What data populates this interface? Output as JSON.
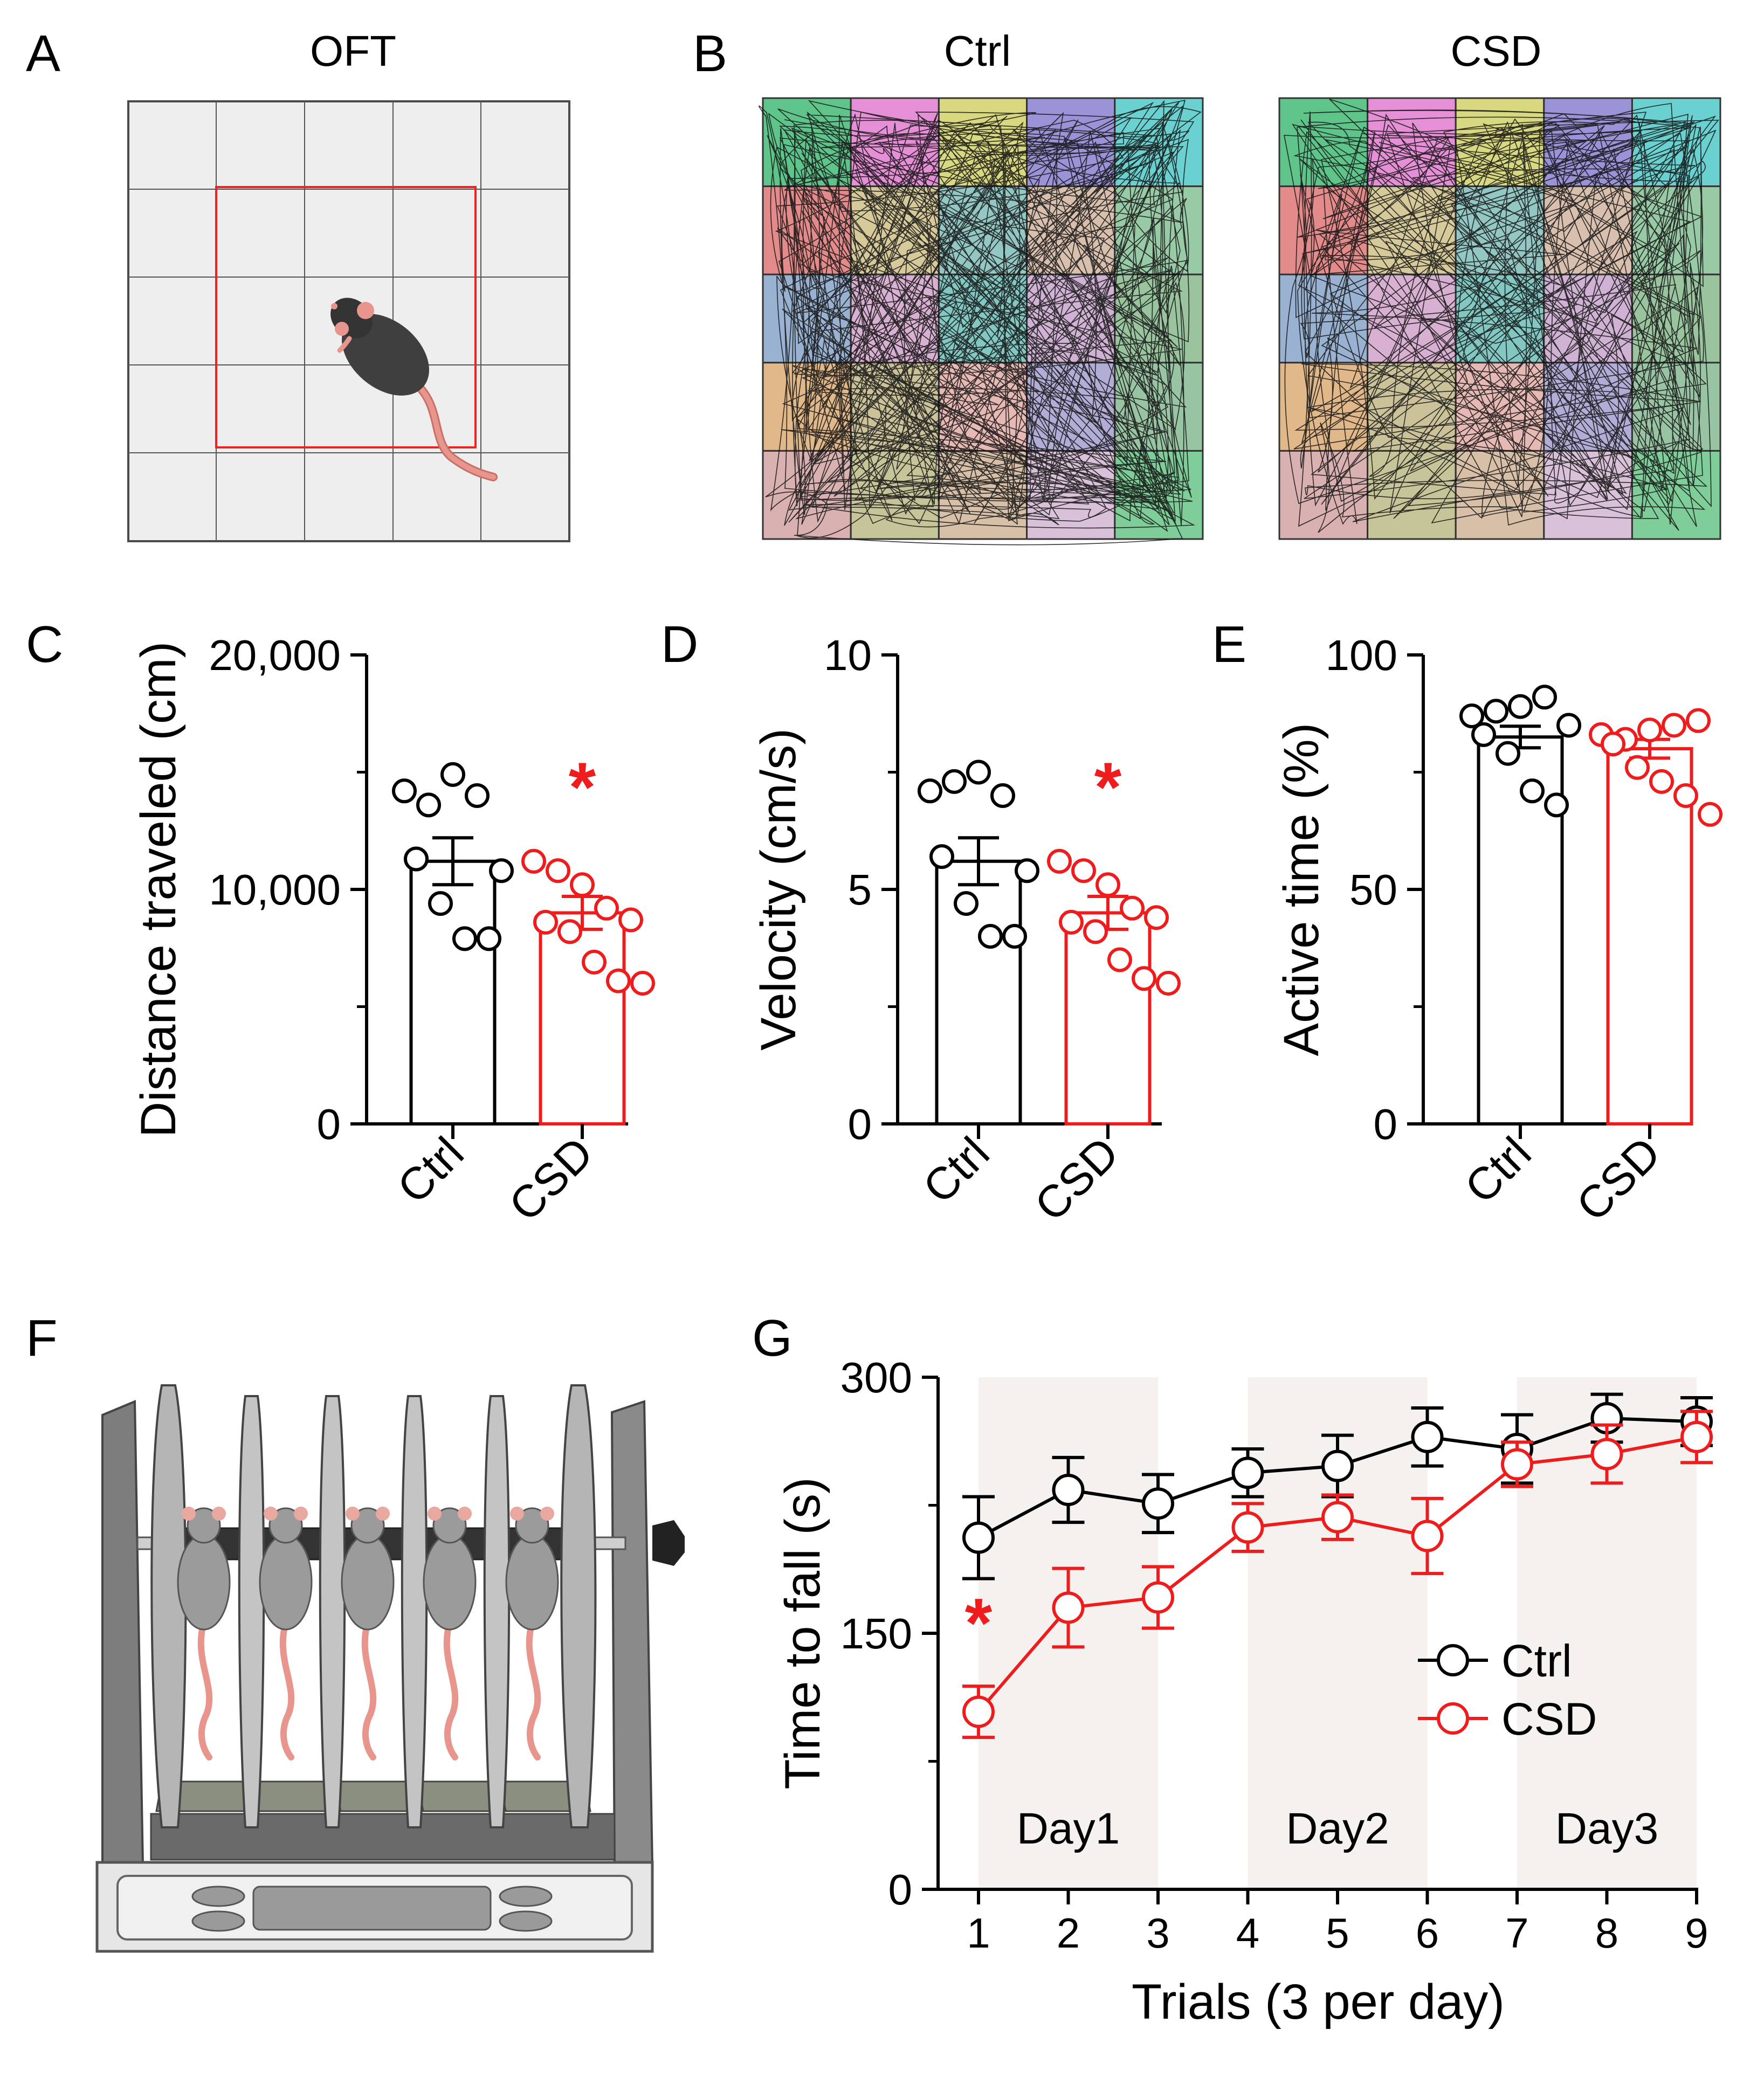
{
  "colors": {
    "ctrl": "#000000",
    "csd": "#ee1c1c",
    "ctrl_fill": "#ffffff",
    "day_shade": "#f4f1ef",
    "arena_bg": "#eeeeee",
    "center_square": "#ee2222",
    "mouse_body": "#3f3f3f",
    "mouse_tail": "#e5928a"
  },
  "panels": {
    "A": {
      "letter": "A",
      "title": "OFT"
    },
    "B": {
      "letter": "B",
      "title_left": "Ctrl",
      "title_right": "CSD"
    },
    "C": {
      "letter": "C"
    },
    "D": {
      "letter": "D"
    },
    "E": {
      "letter": "E"
    },
    "F": {
      "letter": "F"
    },
    "G": {
      "letter": "G"
    }
  },
  "significance_marker": "*",
  "chart_data": [
    {
      "id": "C",
      "type": "bar",
      "ylabel": "Distance  traveled (cm)",
      "ylim": [
        0,
        20000
      ],
      "yticks": [
        0,
        10000,
        20000
      ],
      "ytick_labels": [
        "0",
        "10,000",
        "20,000"
      ],
      "categories": [
        "Ctrl",
        "CSD"
      ],
      "means": [
        11200,
        9000
      ],
      "sem": [
        1000,
        700
      ],
      "points": [
        [
          14200,
          13600,
          14900,
          14000,
          10800,
          11300,
          9400,
          7900,
          7900
        ],
        [
          11200,
          10800,
          10200,
          9200,
          8700,
          8600,
          8200,
          6900,
          6100,
          6000
        ]
      ],
      "significance": [
        "",
        "*"
      ]
    },
    {
      "id": "D",
      "type": "bar",
      "ylabel": "Velocity (cm/s)",
      "ylim": [
        0,
        10
      ],
      "yticks": [
        0,
        5,
        10
      ],
      "ytick_labels": [
        "0",
        "5",
        "10"
      ],
      "categories": [
        "Ctrl",
        "CSD"
      ],
      "means": [
        5.6,
        4.5
      ],
      "sem": [
        0.5,
        0.35
      ],
      "points": [
        [
          7.1,
          7.3,
          7.5,
          7.0,
          5.4,
          5.7,
          4.7,
          4.0,
          4.0
        ],
        [
          5.6,
          5.4,
          5.1,
          4.6,
          4.4,
          4.3,
          4.1,
          3.5,
          3.1,
          3.0
        ]
      ],
      "significance": [
        "",
        "*"
      ]
    },
    {
      "id": "E",
      "type": "bar",
      "ylabel": "Active time (%)",
      "ylim": [
        0,
        100
      ],
      "yticks": [
        0,
        50,
        100
      ],
      "ytick_labels": [
        "0",
        "50",
        "100"
      ],
      "categories": [
        "Ctrl",
        "CSD"
      ],
      "means": [
        82.5,
        80
      ],
      "sem": [
        2.3,
        2.0
      ],
      "points": [
        [
          87,
          88,
          89,
          91,
          85,
          83,
          79,
          71,
          68
        ],
        [
          83,
          82,
          84,
          85,
          86,
          81,
          76,
          73,
          70,
          66
        ]
      ],
      "significance": [
        "",
        ""
      ]
    },
    {
      "id": "G",
      "type": "line",
      "xlabel": "Trials (3 per day)",
      "ylabel": "Time to fall (s)",
      "x": [
        1,
        2,
        3,
        4,
        5,
        6,
        7,
        8,
        9
      ],
      "xlim": [
        1,
        9
      ],
      "ylim": [
        0,
        300
      ],
      "yticks": [
        0,
        150,
        300
      ],
      "ytick_labels": [
        "0",
        "150",
        "300"
      ],
      "series": [
        {
          "name": "Ctrl",
          "values": [
            206,
            234,
            226,
            244,
            248,
            265,
            258,
            276,
            274
          ],
          "err": [
            24,
            19,
            17,
            14,
            18,
            17,
            20,
            14,
            14
          ]
        },
        {
          "name": "CSD",
          "values": [
            104,
            165,
            171,
            212,
            218,
            207,
            249,
            255,
            265
          ],
          "err": [
            15,
            23,
            18,
            14,
            13,
            22,
            13,
            17,
            15
          ]
        }
      ],
      "day_bands": [
        {
          "label": "Day1",
          "from": 1,
          "to": 3
        },
        {
          "label": "Day2",
          "from": 4,
          "to": 6
        },
        {
          "label": "Day3",
          "from": 7,
          "to": 9
        }
      ],
      "significance": [
        {
          "x": 1,
          "series": "CSD",
          "mark": "*"
        }
      ],
      "legend": "center-right"
    }
  ]
}
